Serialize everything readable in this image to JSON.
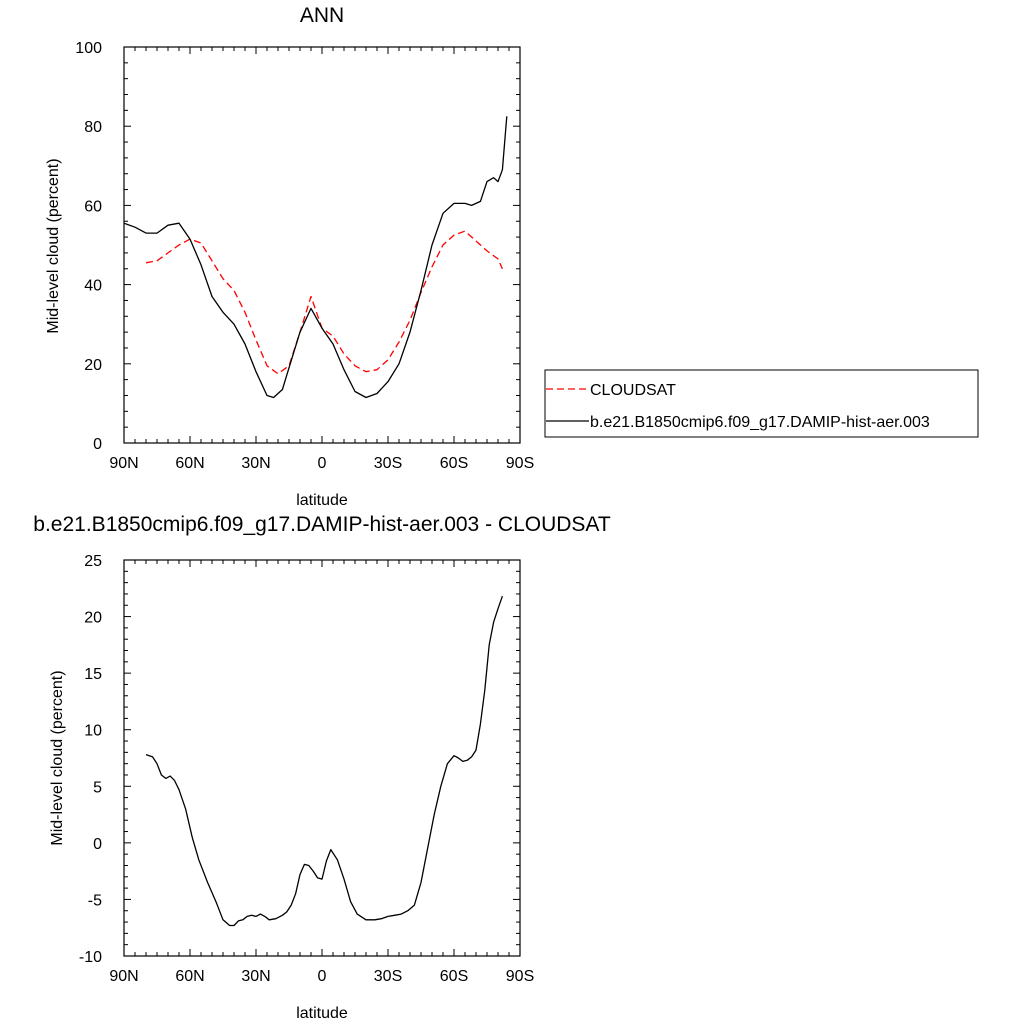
{
  "colors": {
    "cloudsat": "#ff0000",
    "model": "#000000",
    "axis": "#000000",
    "legend_border": "#000000"
  },
  "x_ticks": [
    {
      "value": 90,
      "label": "90N"
    },
    {
      "value": 60,
      "label": "60N"
    },
    {
      "value": 30,
      "label": "30N"
    },
    {
      "value": 0,
      "label": "0"
    },
    {
      "value": -30,
      "label": "30S"
    },
    {
      "value": -60,
      "label": "60S"
    },
    {
      "value": -90,
      "label": "90S"
    }
  ],
  "chart_data": [
    {
      "type": "line",
      "title": "ANN",
      "xlabel": "latitude",
      "ylabel": "Mid-level cloud (percent)",
      "xlim": [
        90,
        -90
      ],
      "ylim": [
        0,
        100
      ],
      "yticks": [
        0,
        20,
        40,
        60,
        80,
        100
      ],
      "legend_placement": "right",
      "series": [
        {
          "name": "CLOUDSAT",
          "style": "dashed",
          "color": "#ff0000",
          "x": [
            80,
            75,
            70,
            65,
            60,
            55,
            50,
            45,
            40,
            35,
            30,
            25,
            20,
            15,
            10,
            5,
            0,
            -5,
            -10,
            -15,
            -20,
            -25,
            -30,
            -35,
            -40,
            -45,
            -50,
            -55,
            -60,
            -65,
            -70,
            -75,
            -80,
            -82
          ],
          "y": [
            45.5,
            46,
            48,
            50,
            51.5,
            50.5,
            46,
            41.5,
            38.5,
            33,
            26,
            19.5,
            17.5,
            19.5,
            28,
            37,
            29,
            27,
            22.5,
            19.5,
            18,
            18.5,
            21,
            25.5,
            31,
            38,
            44.5,
            50,
            52.5,
            53.5,
            51,
            48.5,
            46.5,
            44
          ]
        },
        {
          "name": "b.e21.B1850cmip6.f09_g17.DAMIP-hist-aer.003",
          "style": "solid",
          "color": "#000000",
          "x": [
            90,
            85,
            80,
            75,
            70,
            65,
            60,
            55,
            50,
            45,
            40,
            35,
            30,
            25,
            22,
            18,
            15,
            10,
            5,
            0,
            -5,
            -10,
            -15,
            -20,
            -25,
            -30,
            -35,
            -40,
            -45,
            -50,
            -55,
            -60,
            -65,
            -68,
            -72,
            -75,
            -78,
            -80,
            -82,
            -84
          ],
          "y": [
            55.5,
            54.5,
            53,
            53,
            55,
            55.5,
            51.5,
            45,
            37,
            33,
            30,
            25,
            18,
            12,
            11.5,
            13.5,
            19,
            28,
            34,
            29,
            25,
            18.5,
            13,
            11.5,
            12.5,
            15.5,
            20,
            28,
            38.5,
            50,
            58,
            60.5,
            60.5,
            60,
            61,
            66,
            67,
            66,
            69,
            82.5
          ]
        }
      ]
    },
    {
      "type": "line",
      "title": "b.e21.B1850cmip6.f09_g17.DAMIP-hist-aer.003 - CLOUDSAT",
      "xlabel": "latitude",
      "ylabel": "Mid-level cloud (percent)",
      "xlim": [
        90,
        -90
      ],
      "ylim": [
        -10,
        25
      ],
      "yticks": [
        -10,
        -5,
        0,
        5,
        10,
        15,
        20,
        25
      ],
      "series": [
        {
          "style": "solid",
          "color": "#000000",
          "x": [
            80,
            77,
            75,
            73,
            71,
            69,
            67,
            65,
            62,
            59,
            56,
            52,
            48,
            45,
            42,
            40,
            38,
            36,
            34,
            32,
            30,
            28,
            26,
            24,
            21,
            18,
            16,
            14,
            12,
            10,
            8,
            6,
            4,
            2,
            0,
            -2,
            -4,
            -7,
            -10,
            -13,
            -16,
            -20,
            -24,
            -27,
            -30,
            -33,
            -36,
            -39,
            -42,
            -45,
            -48,
            -51,
            -54,
            -57,
            -60,
            -62,
            -64,
            -66,
            -68,
            -70,
            -72,
            -74,
            -76,
            -78,
            -80,
            -82
          ],
          "y": [
            7.8,
            7.6,
            7,
            6,
            5.7,
            5.9,
            5.5,
            4.7,
            3,
            0.5,
            -1.5,
            -3.5,
            -5.3,
            -6.8,
            -7.3,
            -7.3,
            -6.9,
            -6.8,
            -6.5,
            -6.4,
            -6.5,
            -6.3,
            -6.5,
            -6.8,
            -6.7,
            -6.4,
            -6.1,
            -5.5,
            -4.5,
            -2.8,
            -1.9,
            -2,
            -2.5,
            -3.1,
            -3.2,
            -1.6,
            -0.6,
            -1.5,
            -3.2,
            -5.2,
            -6.3,
            -6.8,
            -6.8,
            -6.7,
            -6.5,
            -6.4,
            -6.3,
            -6,
            -5.5,
            -3.5,
            -0.5,
            2.5,
            5,
            7,
            7.7,
            7.5,
            7.2,
            7.3,
            7.6,
            8.2,
            10.5,
            13.5,
            17.5,
            19.5,
            20.7,
            21.8
          ]
        }
      ]
    }
  ]
}
